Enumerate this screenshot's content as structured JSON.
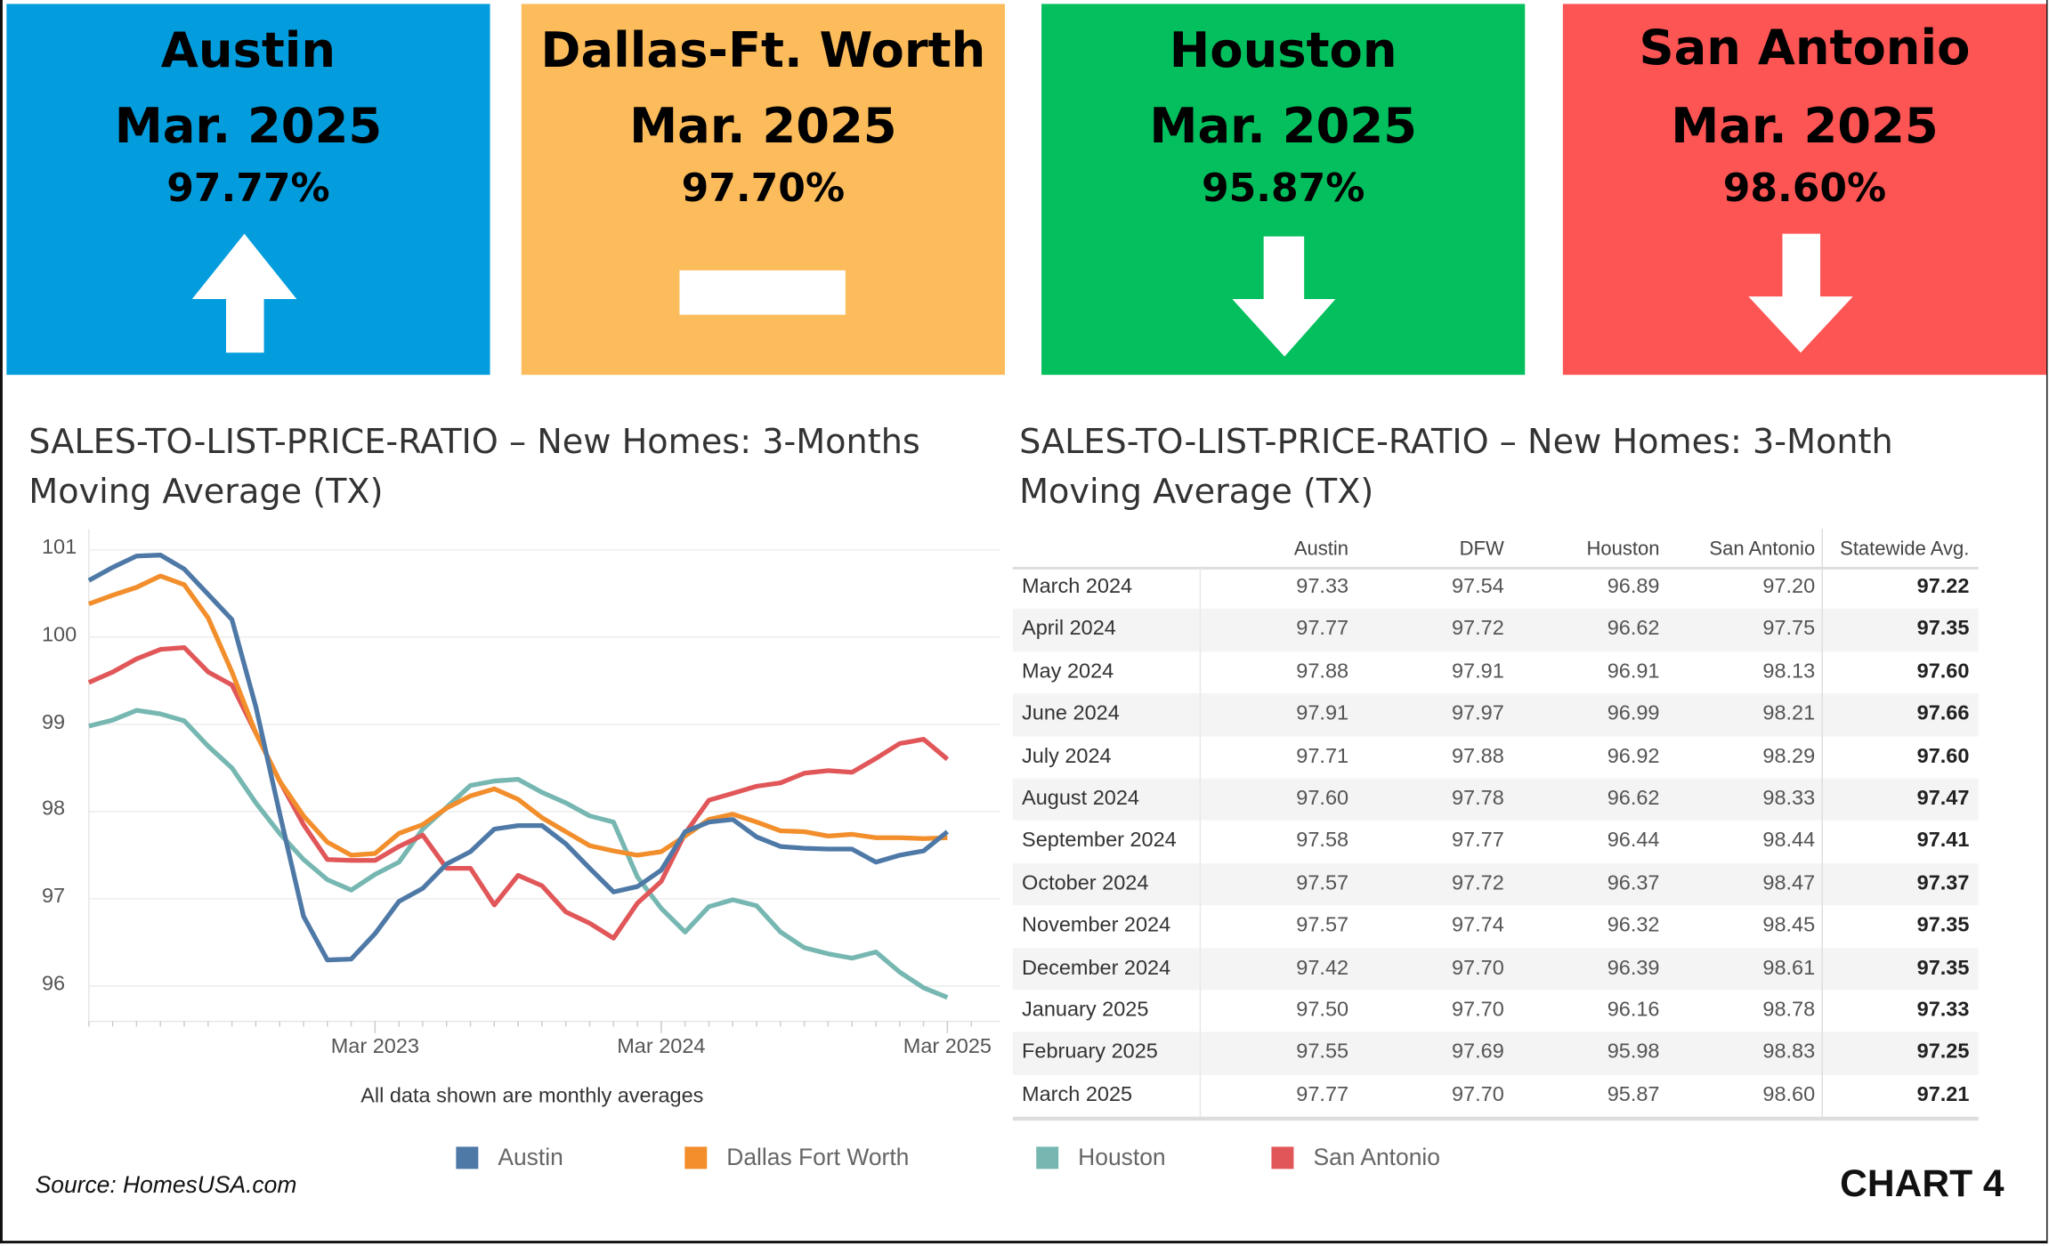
{
  "tiles": [
    {
      "city": "Austin",
      "date": "Mar. 2025",
      "pct": "97.77%",
      "trend": "up",
      "color": "#039ddd"
    },
    {
      "city": "Dallas-Ft. Worth",
      "date": "Mar. 2025",
      "pct": "97.70%",
      "trend": "flat",
      "color": "#fdbc5b"
    },
    {
      "city": "Houston",
      "date": "Mar. 2025",
      "pct": "95.87%",
      "trend": "down",
      "color": "#03bf5d"
    },
    {
      "city": "San Antonio",
      "date": "Mar. 2025",
      "pct": "98.60%",
      "trend": "down",
      "color": "#fd5454"
    }
  ],
  "chart_data": [
    {
      "type": "line",
      "title_line1": "SALES-TO-LIST-PRICE-RATIO – New Homes: 3-Months",
      "title_line2": "Moving Average (TX)",
      "note": "All data shown are monthly averages",
      "ylim": [
        95.6,
        101.05
      ],
      "yticks": [
        "101",
        "100",
        "99",
        "98",
        "97",
        "96"
      ],
      "xticks": [
        "Mar 2023",
        "Mar 2024",
        "Mar 2025"
      ],
      "grid": true,
      "legend_position": "bottom",
      "x": [
        "Mar 2022",
        "Apr 2022",
        "May 2022",
        "Jun 2022",
        "Jul 2022",
        "Aug 2022",
        "Sep 2022",
        "Oct 2022",
        "Nov 2022",
        "Dec 2022",
        "Jan 2023",
        "Feb 2023",
        "Mar 2023",
        "Apr 2023",
        "May 2023",
        "Jun 2023",
        "Jul 2023",
        "Aug 2023",
        "Sep 2023",
        "Oct 2023",
        "Nov 2023",
        "Dec 2023",
        "Jan 2024",
        "Feb 2024",
        "Mar 2024",
        "Apr 2024",
        "May 2024",
        "Jun 2024",
        "Jul 2024",
        "Aug 2024",
        "Sep 2024",
        "Oct 2024",
        "Nov 2024",
        "Dec 2024",
        "Jan 2025",
        "Feb 2025",
        "Mar 2025"
      ],
      "series": [
        {
          "name": "Austin",
          "color": "#4e79a7",
          "values": [
            100.65,
            100.8,
            100.93,
            100.94,
            100.78,
            100.49,
            100.2,
            99.2,
            97.98,
            96.8,
            96.3,
            96.31,
            96.6,
            96.97,
            97.12,
            97.4,
            97.54,
            97.8,
            97.84,
            97.84,
            97.63,
            97.35,
            97.08,
            97.14,
            97.33,
            97.77,
            97.88,
            97.91,
            97.71,
            97.6,
            97.58,
            97.57,
            97.57,
            97.42,
            97.5,
            97.55,
            97.77
          ]
        },
        {
          "name": "Dallas Fort Worth",
          "color": "#f28e2b",
          "values": [
            100.38,
            100.48,
            100.57,
            100.7,
            100.6,
            100.22,
            99.6,
            98.9,
            98.35,
            97.95,
            97.65,
            97.5,
            97.52,
            97.75,
            97.85,
            98.04,
            98.18,
            98.26,
            98.14,
            97.93,
            97.77,
            97.61,
            97.55,
            97.5,
            97.54,
            97.72,
            97.91,
            97.97,
            97.88,
            97.78,
            97.77,
            97.72,
            97.74,
            97.7,
            97.7,
            97.69,
            97.7
          ]
        },
        {
          "name": "Houston",
          "color": "#76b7b2",
          "values": [
            98.98,
            99.05,
            99.16,
            99.12,
            99.04,
            98.75,
            98.5,
            98.1,
            97.75,
            97.45,
            97.22,
            97.1,
            97.28,
            97.42,
            97.8,
            98.05,
            98.3,
            98.35,
            98.37,
            98.22,
            98.1,
            97.95,
            97.88,
            97.25,
            96.89,
            96.62,
            96.91,
            96.99,
            96.92,
            96.62,
            96.44,
            96.37,
            96.32,
            96.39,
            96.16,
            95.98,
            95.87
          ]
        },
        {
          "name": "San Antonio",
          "color": "#e15759",
          "values": [
            99.48,
            99.6,
            99.75,
            99.86,
            99.88,
            99.6,
            99.45,
            98.9,
            98.35,
            97.85,
            97.45,
            97.44,
            97.44,
            97.6,
            97.73,
            97.35,
            97.35,
            96.93,
            97.27,
            97.15,
            96.85,
            96.72,
            96.55,
            96.95,
            97.2,
            97.75,
            98.13,
            98.21,
            98.29,
            98.33,
            98.44,
            98.47,
            98.45,
            98.61,
            98.78,
            98.83,
            98.6
          ]
        }
      ]
    },
    {
      "type": "table",
      "title_line1": "SALES-TO-LIST-PRICE-RATIO – New Homes:  3-Month",
      "title_line2": "Moving Average (TX)",
      "columns": [
        "",
        "Austin",
        "DFW",
        "Houston",
        "San Antonio",
        "Statewide Avg."
      ],
      "rows": [
        [
          "March 2024",
          "97.33",
          "97.54",
          "96.89",
          "97.20",
          "97.22"
        ],
        [
          "April 2024",
          "97.77",
          "97.72",
          "96.62",
          "97.75",
          "97.35"
        ],
        [
          "May 2024",
          "97.88",
          "97.91",
          "96.91",
          "98.13",
          "97.60"
        ],
        [
          "June 2024",
          "97.91",
          "97.97",
          "96.99",
          "98.21",
          "97.66"
        ],
        [
          "July 2024",
          "97.71",
          "97.88",
          "96.92",
          "98.29",
          "97.60"
        ],
        [
          "August 2024",
          "97.60",
          "97.78",
          "96.62",
          "98.33",
          "97.47"
        ],
        [
          "September 2024",
          "97.58",
          "97.77",
          "96.44",
          "98.44",
          "97.41"
        ],
        [
          "October 2024",
          "97.57",
          "97.72",
          "96.37",
          "98.47",
          "97.37"
        ],
        [
          "November 2024",
          "97.57",
          "97.74",
          "96.32",
          "98.45",
          "97.35"
        ],
        [
          "December 2024",
          "97.42",
          "97.70",
          "96.39",
          "98.61",
          "97.35"
        ],
        [
          "January 2025",
          "97.50",
          "97.70",
          "96.16",
          "98.78",
          "97.33"
        ],
        [
          "February 2025",
          "97.55",
          "97.69",
          "95.98",
          "98.83",
          "97.25"
        ],
        [
          "March 2025",
          "97.77",
          "97.70",
          "95.87",
          "98.60",
          "97.21"
        ]
      ]
    }
  ],
  "footer": {
    "source": "Source: HomesUSA.com",
    "chart_label": "CHART 4"
  }
}
